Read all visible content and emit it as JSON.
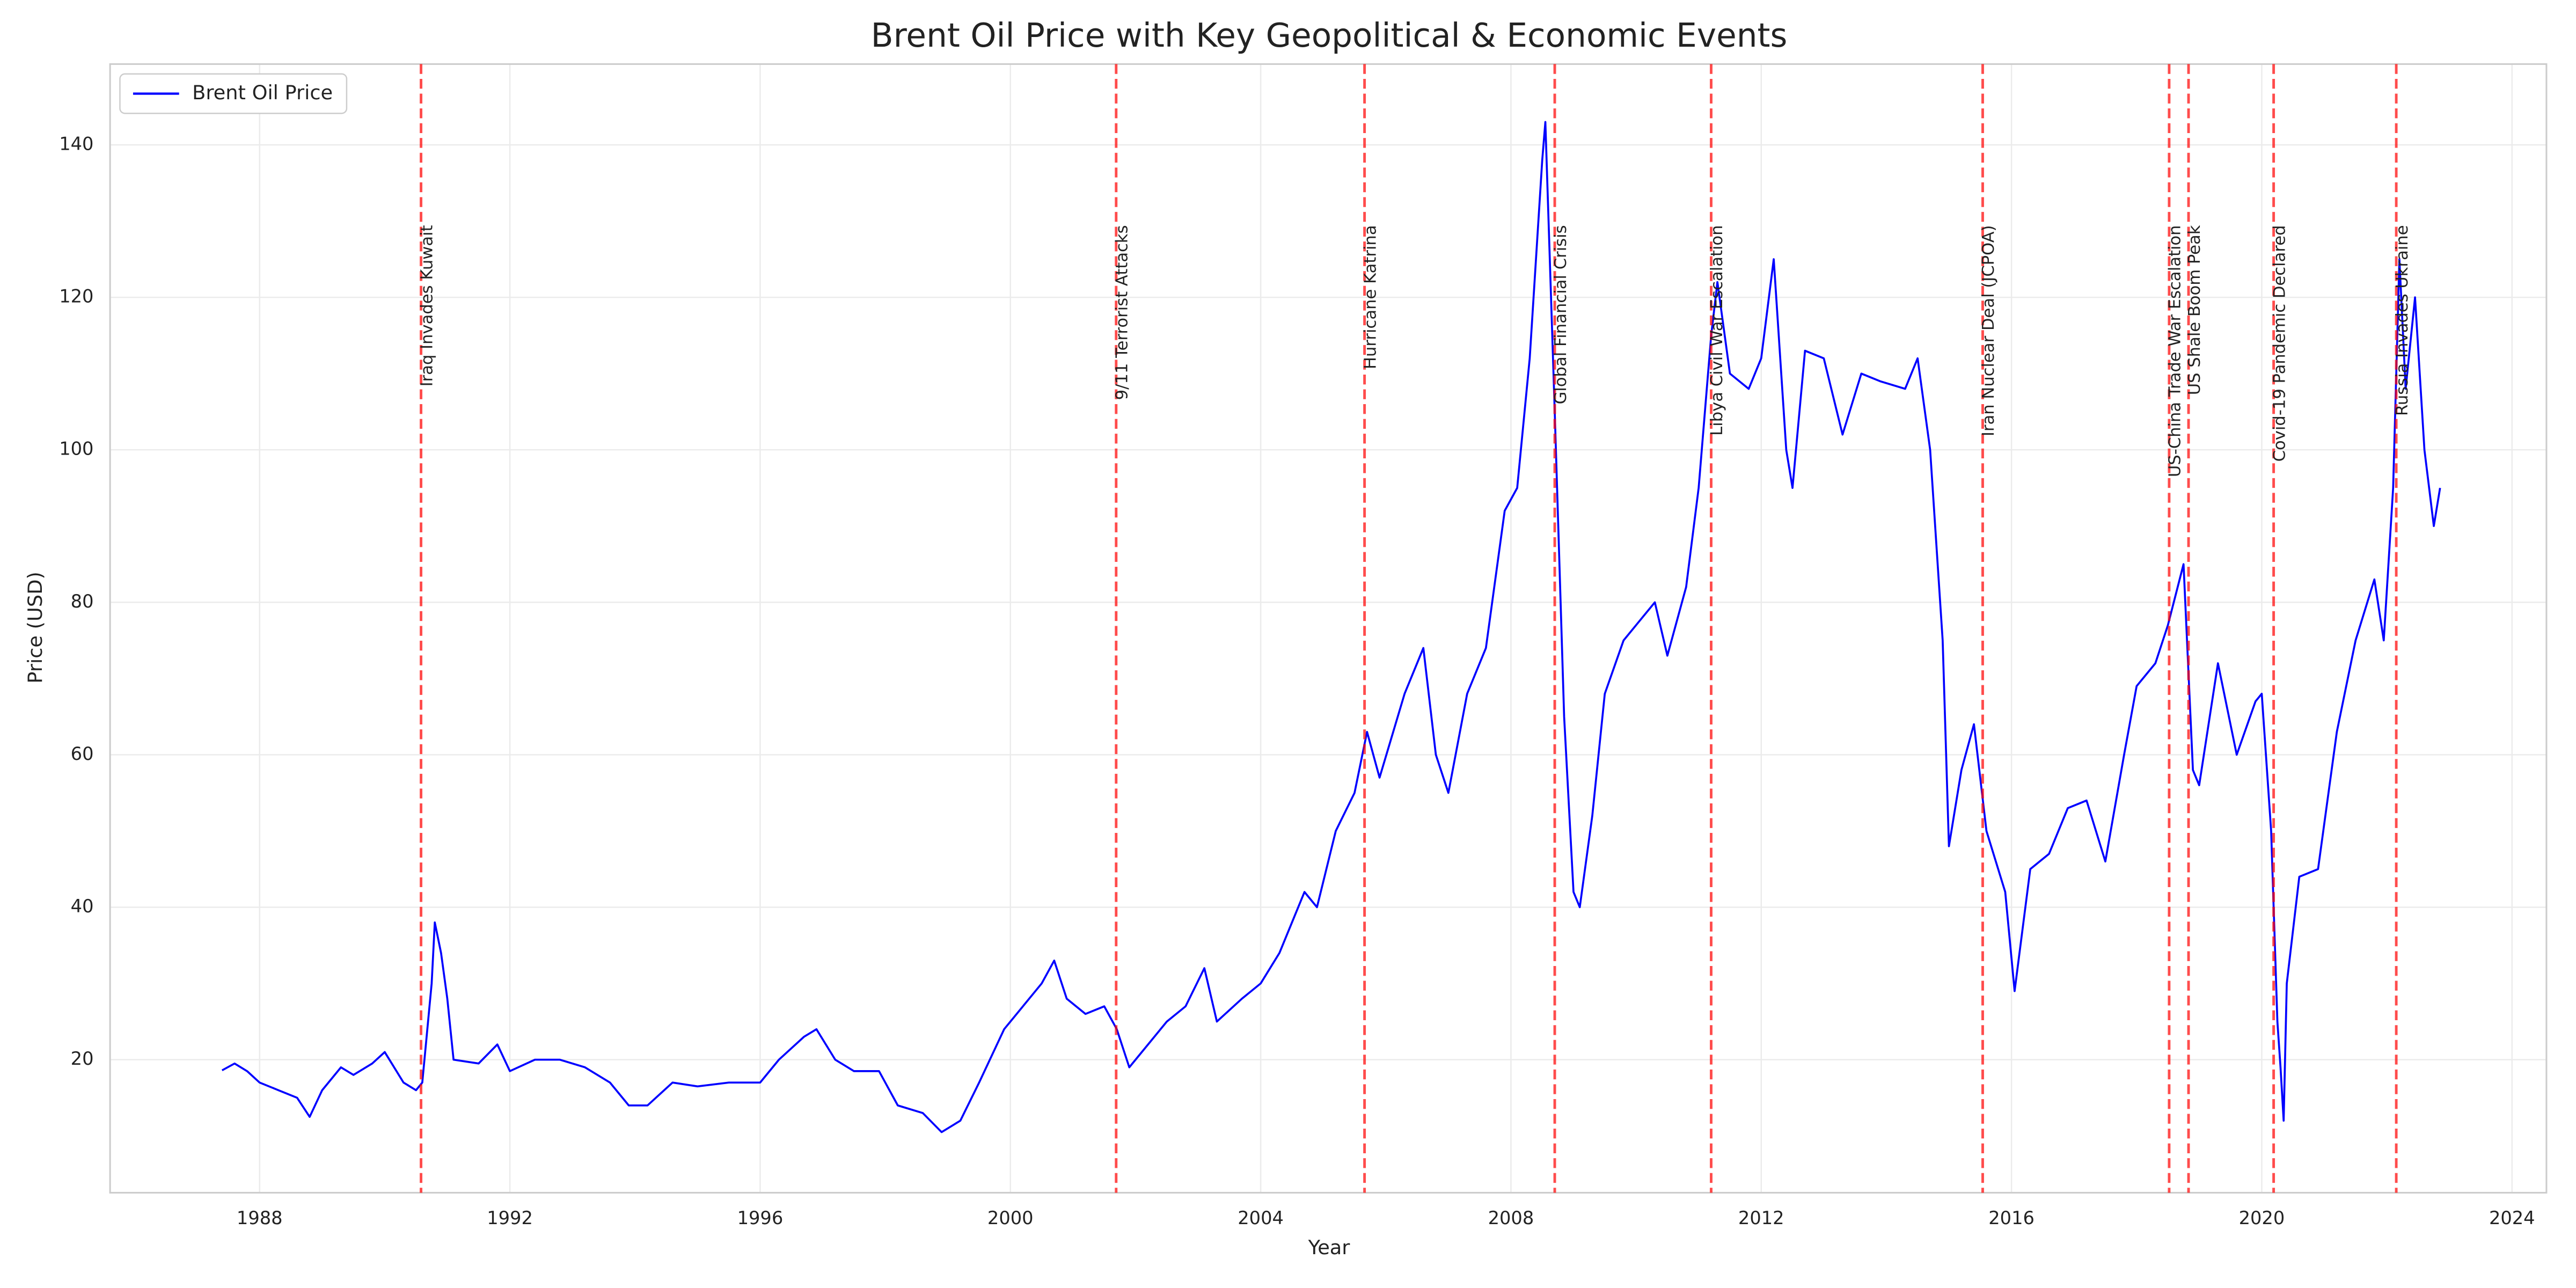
{
  "chart_data": {
    "type": "line",
    "title": "Brent Oil Price with Key Geopolitical & Economic Events",
    "x_label": "Year",
    "y_label": "Price (USD)",
    "x": [
      1987.4,
      1987.6,
      1987.8,
      1988.0,
      1988.3,
      1988.6,
      1988.8,
      1989.0,
      1989.3,
      1989.5,
      1989.8,
      1990.0,
      1990.3,
      1990.5,
      1990.6,
      1990.75,
      1990.8,
      1990.9,
      1991.0,
      1991.1,
      1991.5,
      1991.8,
      1992.0,
      1992.4,
      1992.8,
      1993.2,
      1993.6,
      1993.9,
      1994.2,
      1994.6,
      1995.0,
      1995.5,
      1996.0,
      1996.3,
      1996.7,
      1996.9,
      1997.2,
      1997.5,
      1997.9,
      1998.2,
      1998.6,
      1998.9,
      1999.2,
      1999.5,
      1999.9,
      2000.2,
      2000.5,
      2000.7,
      2000.9,
      2001.2,
      2001.5,
      2001.7,
      2001.9,
      2002.2,
      2002.5,
      2002.8,
      2003.1,
      2003.3,
      2003.7,
      2004.0,
      2004.3,
      2004.7,
      2004.9,
      2005.2,
      2005.5,
      2005.7,
      2005.9,
      2006.3,
      2006.6,
      2006.8,
      2007.0,
      2007.3,
      2007.6,
      2007.9,
      2008.1,
      2008.3,
      2008.5,
      2008.55,
      2008.7,
      2008.85,
      2009.0,
      2009.1,
      2009.3,
      2009.5,
      2009.8,
      2010.0,
      2010.3,
      2010.5,
      2010.8,
      2011.0,
      2011.2,
      2011.3,
      2011.5,
      2011.8,
      2012.0,
      2012.2,
      2012.4,
      2012.5,
      2012.7,
      2013.0,
      2013.3,
      2013.6,
      2013.9,
      2014.3,
      2014.5,
      2014.7,
      2014.9,
      2015.0,
      2015.2,
      2015.4,
      2015.6,
      2015.9,
      2016.05,
      2016.3,
      2016.6,
      2016.9,
      2017.2,
      2017.5,
      2017.8,
      2018.0,
      2018.3,
      2018.5,
      2018.75,
      2018.9,
      2019.0,
      2019.3,
      2019.6,
      2019.9,
      2020.0,
      2020.15,
      2020.25,
      2020.3,
      2020.35,
      2020.4,
      2020.6,
      2020.9,
      2021.2,
      2021.5,
      2021.8,
      2021.95,
      2022.1,
      2022.2,
      2022.3,
      2022.45,
      2022.6,
      2022.75,
      2022.85
    ],
    "series": [
      {
        "name": "Brent Oil Price",
        "color": "#0000ff",
        "values": [
          18.6,
          19.5,
          18.5,
          17,
          16,
          15,
          12.5,
          16,
          19,
          18,
          19.5,
          21,
          17,
          16,
          17,
          30,
          38,
          34,
          28,
          20,
          19.5,
          22,
          18.5,
          20,
          20,
          19,
          17,
          14,
          14,
          17,
          16.5,
          17,
          17,
          20,
          23,
          24,
          20,
          18.5,
          18.5,
          14,
          13,
          10.5,
          12,
          17,
          24,
          27,
          30,
          33,
          28,
          26,
          27,
          24,
          19,
          22,
          25,
          27,
          32,
          25,
          28,
          30,
          34,
          42,
          40,
          50,
          55,
          63,
          57,
          68,
          74,
          60,
          55,
          68,
          74,
          92,
          95,
          112,
          138,
          143,
          105,
          65,
          42,
          40,
          52,
          68,
          75,
          77,
          80,
          73,
          82,
          95,
          115,
          122,
          110,
          108,
          112,
          125,
          100,
          95,
          113,
          112,
          102,
          110,
          109,
          108,
          112,
          100,
          75,
          48,
          58,
          64,
          50,
          42,
          29,
          45,
          47,
          53,
          54,
          46,
          60,
          69,
          72,
          77,
          85,
          58,
          56,
          72,
          60,
          67,
          68,
          50,
          25,
          19,
          12,
          30,
          44,
          45,
          63,
          75,
          83,
          75,
          95,
          125,
          108,
          120,
          100,
          90,
          95
        ]
      }
    ],
    "events": [
      {
        "x": 1990.58,
        "label": "Iraq Invades Kuwait"
      },
      {
        "x": 2001.69,
        "label": "9/11 Terrorist Attacks"
      },
      {
        "x": 2005.66,
        "label": "Hurricane Katrina"
      },
      {
        "x": 2008.7,
        "label": "Global Financial Crisis"
      },
      {
        "x": 2011.2,
        "label": "Libya Civil War Escalation"
      },
      {
        "x": 2015.54,
        "label": "Iran Nuclear Deal (JCPOA)"
      },
      {
        "x": 2018.52,
        "label": "US-China Trade War Escalation"
      },
      {
        "x": 2018.83,
        "label": "US Shale Boom Peak"
      },
      {
        "x": 2020.19,
        "label": "Covid-19 Pandemic Declared"
      },
      {
        "x": 2022.15,
        "label": "Russia Invades Ukraine"
      }
    ],
    "event_color": "#ff0000",
    "xlim": [
      1985.61,
      2024.55
    ],
    "xticks": [
      1988,
      1992,
      1996,
      2000,
      2004,
      2008,
      2012,
      2016,
      2020,
      2024
    ],
    "ylim": [
      2.55,
      150.6
    ],
    "yticks": [
      20,
      40,
      60,
      80,
      100,
      120,
      140
    ],
    "grid": true,
    "legend": "upper left"
  }
}
